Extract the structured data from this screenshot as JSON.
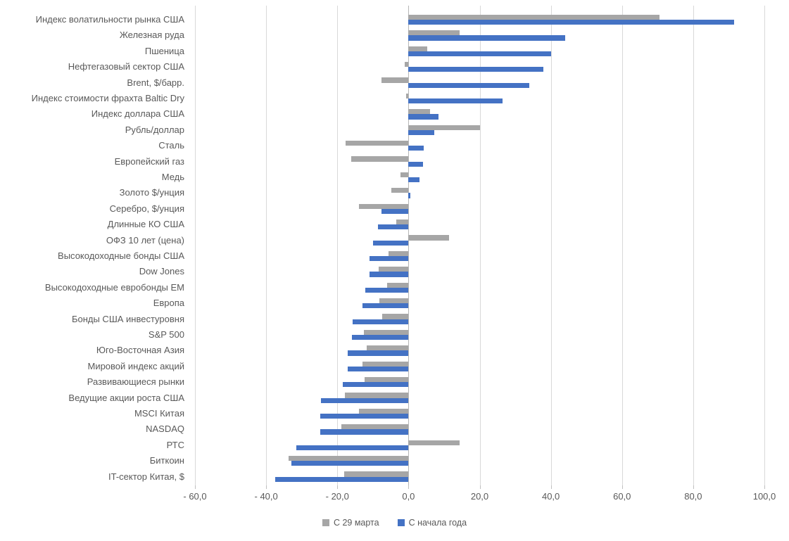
{
  "chart_data": {
    "type": "bar",
    "orientation": "horizontal",
    "categories": [
      "Индекс волатильности рынка США",
      "Железная руда",
      "Пшеница",
      "Нефтегазовый сектор США",
      "Brent, $/барр.",
      "Индекс стоимости фрахта Baltic Dry",
      "Индекс доллара США",
      "Рубль/доллар",
      "Сталь",
      "Европейский газ",
      "Медь",
      "Золото $/унция",
      "Серебро, $/унция",
      "Длинные КО США",
      "ОФЗ 10 лет (цена)",
      "Высокодоходные бонды США",
      "Dow Jones",
      "Высокодоходные евробонды EM",
      "Европа",
      "Бонды США инвестуровня",
      "S&P 500",
      "Юго-Восточная Азия",
      "Мировой индекс акций",
      "Развивающиеся рынки",
      "Ведущие акции роста США",
      "MSCI Китая",
      "NASDAQ",
      "РТС",
      "Биткоин",
      "IT-сектор Китая, $"
    ],
    "series": [
      {
        "name": "С 29 марта",
        "color": "#a6a6a6",
        "values": [
          70.5,
          14.3,
          5.3,
          -1.0,
          -7.5,
          -0.6,
          6.0,
          20.0,
          -17.6,
          -16.0,
          -2.3,
          -4.9,
          -14.0,
          -3.4,
          11.3,
          -5.6,
          -8.4,
          -6.0,
          -8.2,
          -7.3,
          -12.6,
          -11.8,
          -13.0,
          -12.4,
          -17.9,
          -14.0,
          -18.8,
          14.4,
          -33.6,
          -18.1
        ]
      },
      {
        "name": "С начала года",
        "color": "#4472c4",
        "values": [
          91.5,
          44.1,
          40.1,
          37.9,
          34.0,
          26.5,
          8.5,
          7.3,
          4.2,
          4.0,
          3.1,
          0.5,
          -7.6,
          -8.6,
          -10.0,
          -11.0,
          -11.0,
          -12.1,
          -13.0,
          -15.7,
          -15.8,
          -17.1,
          -17.1,
          -18.4,
          -24.6,
          -24.8,
          -24.8,
          -31.6,
          -33.0,
          -37.4
        ]
      }
    ],
    "xlim": [
      -60,
      100
    ],
    "x_tick_step": 20,
    "x_tick_labels": [
      "- 60,0",
      "- 40,0",
      "- 20,0",
      "0,0",
      "20,0",
      "40,0",
      "60,0",
      "80,0",
      "100,0"
    ],
    "grid": true,
    "legend_position": "bottom"
  },
  "styles": {
    "text_color": "#595959",
    "grid_color": "#d9d9d9",
    "background": "#ffffff"
  }
}
